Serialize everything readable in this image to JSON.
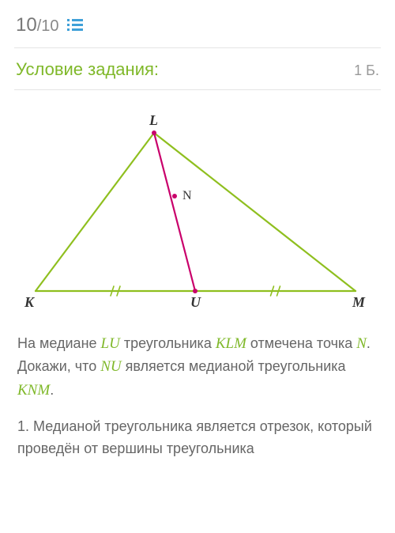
{
  "header": {
    "current": "10",
    "total": "10"
  },
  "subheader": {
    "condition_label": "Условие задания:",
    "points": "1 Б."
  },
  "figure": {
    "triangle_color": "#8fbf1f",
    "median_color": "#c9006b",
    "label_color": "#333333",
    "tick_color": "#8fbf1f",
    "stroke_width": 2.2,
    "labels": {
      "K": "K",
      "L": "L",
      "M": "M",
      "U": "U",
      "N": "N"
    },
    "points": {
      "K": [
        25,
        230
      ],
      "L": [
        175,
        30
      ],
      "M": [
        430,
        230
      ],
      "U": [
        227,
        230
      ],
      "N": [
        201,
        110
      ]
    }
  },
  "body": {
    "t1": "На медиане ",
    "m1": "LU",
    "t2": " треугольника ",
    "m2": "KLM",
    "t3": " отмечена точка ",
    "m3": "N",
    "t4": ". Докажи, что ",
    "m4": "NU",
    "t5": " является медианой треугольника ",
    "m5": "KNM",
    "t6": "."
  },
  "step1": "1. Медианой треугольника является отрезок, который проведён от вершины треугольника"
}
